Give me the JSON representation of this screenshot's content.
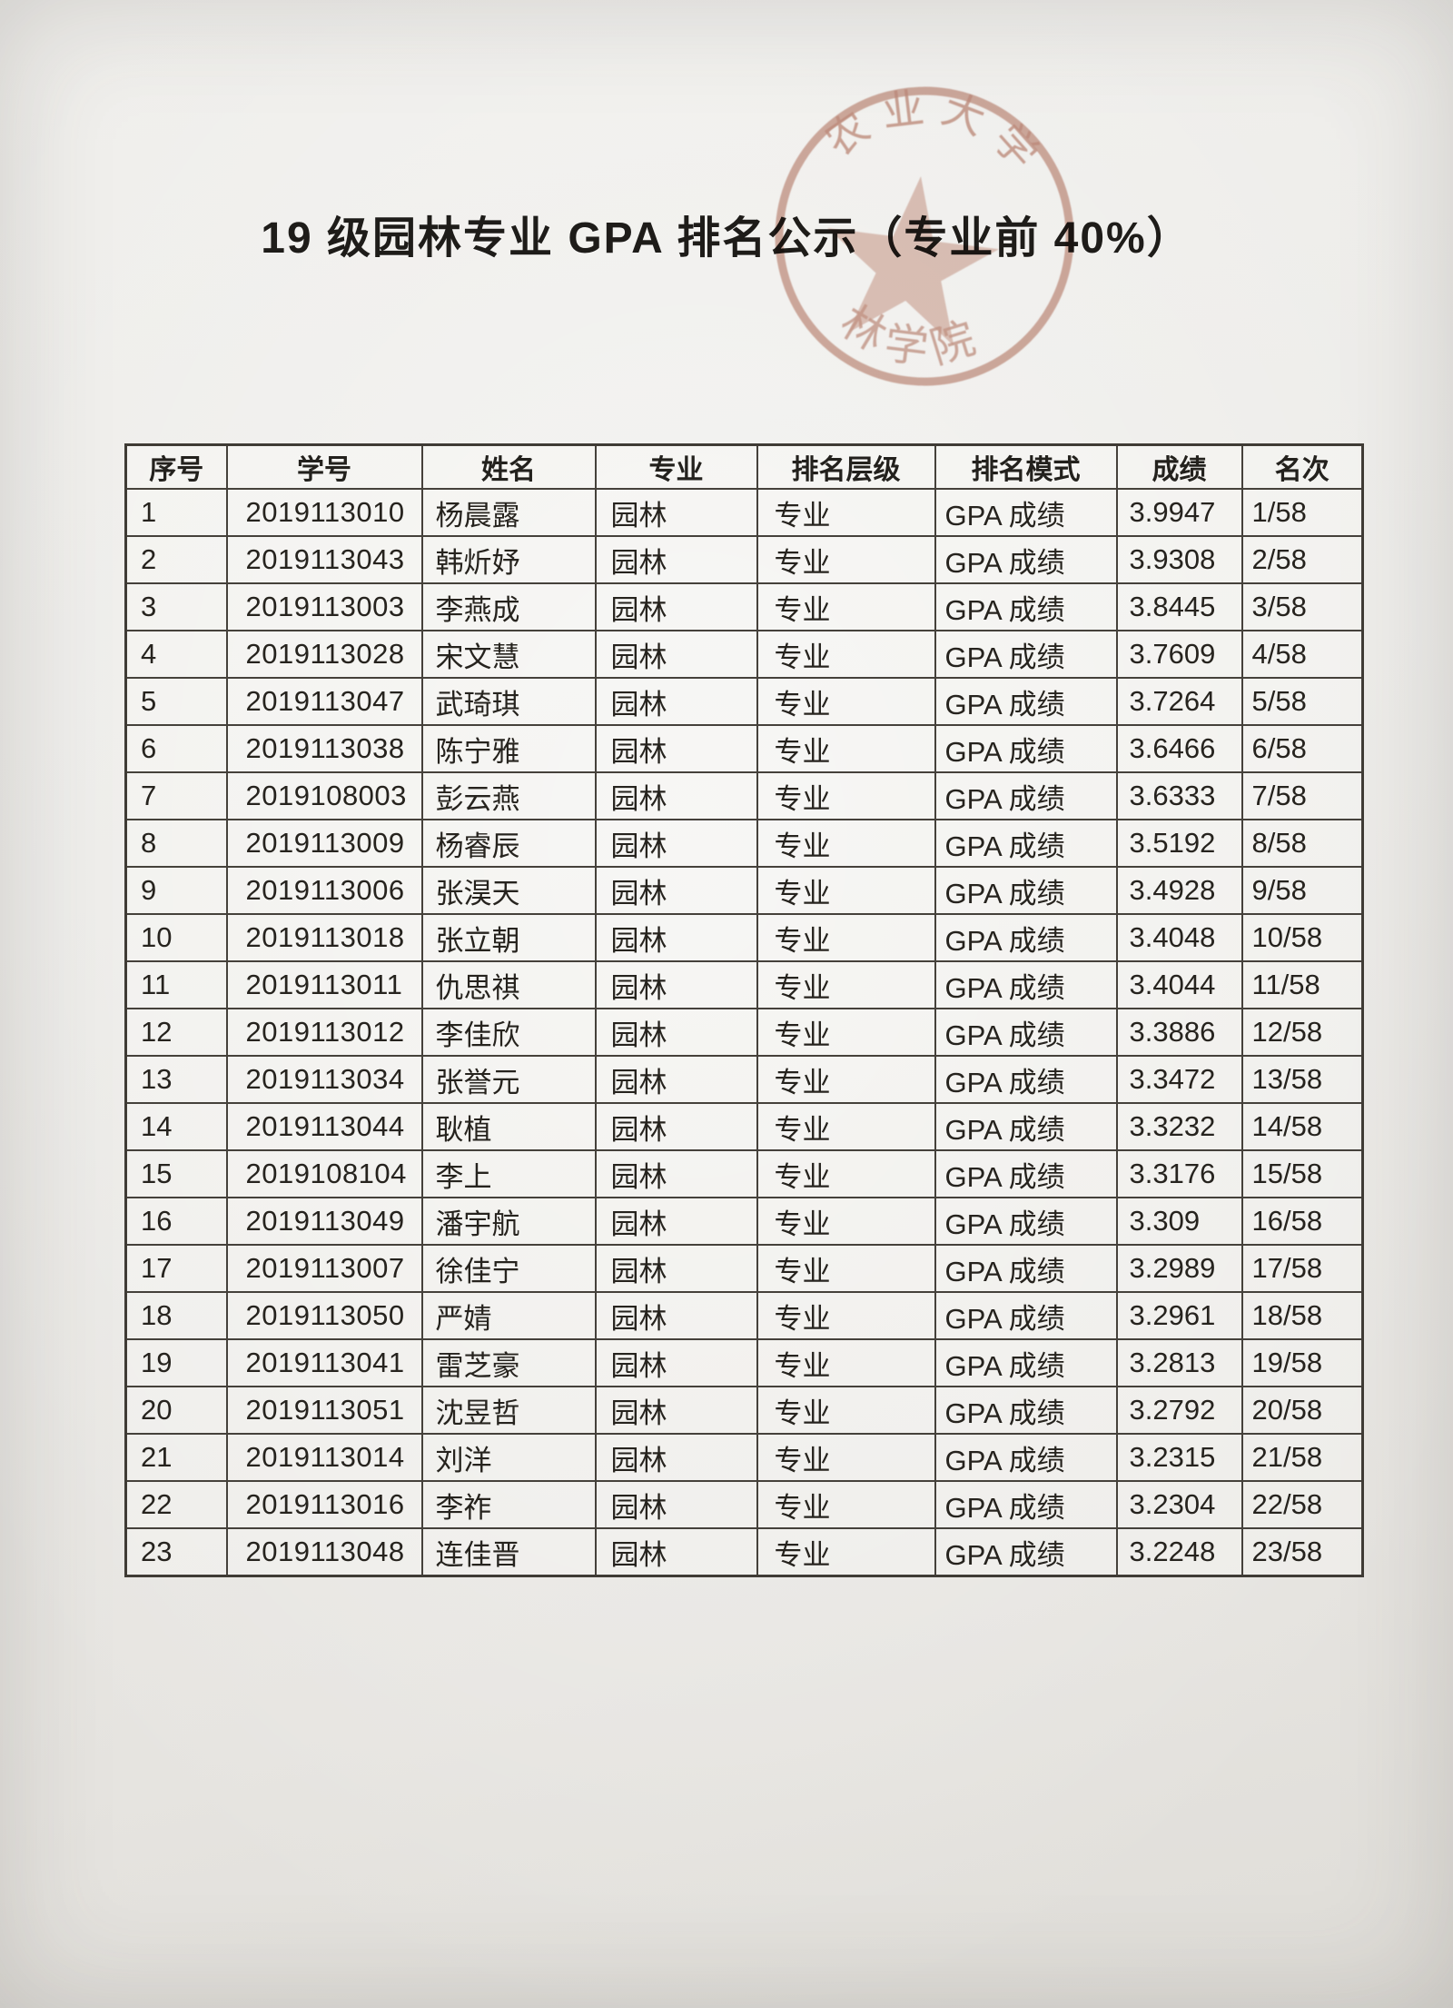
{
  "page": {
    "title": "19 级园林专业 GPA 排名公示（专业前 40%）"
  },
  "stamp": {
    "top_text": "农业大学",
    "bottom_text": "林学院",
    "center_symbol": "five-pointed-star",
    "ink_color": "#c08573"
  },
  "table": {
    "columns": [
      "序号",
      "学号",
      "姓名",
      "专业",
      "排名层级",
      "排名模式",
      "成绩",
      "名次"
    ],
    "rows": [
      {
        "index": "1",
        "student_id": "2019113010",
        "name": "杨晨露",
        "major": "园林",
        "level": "专业",
        "mode": "GPA 成绩",
        "score": "3.9947",
        "rank": "1/58"
      },
      {
        "index": "2",
        "student_id": "2019113043",
        "name": "韩炘妤",
        "major": "园林",
        "level": "专业",
        "mode": "GPA 成绩",
        "score": "3.9308",
        "rank": "2/58"
      },
      {
        "index": "3",
        "student_id": "2019113003",
        "name": "李燕成",
        "major": "园林",
        "level": "专业",
        "mode": "GPA 成绩",
        "score": "3.8445",
        "rank": "3/58"
      },
      {
        "index": "4",
        "student_id": "2019113028",
        "name": "宋文慧",
        "major": "园林",
        "level": "专业",
        "mode": "GPA 成绩",
        "score": "3.7609",
        "rank": "4/58"
      },
      {
        "index": "5",
        "student_id": "2019113047",
        "name": "武琦琪",
        "major": "园林",
        "level": "专业",
        "mode": "GPA 成绩",
        "score": "3.7264",
        "rank": "5/58"
      },
      {
        "index": "6",
        "student_id": "2019113038",
        "name": "陈宁雅",
        "major": "园林",
        "level": "专业",
        "mode": "GPA 成绩",
        "score": "3.6466",
        "rank": "6/58"
      },
      {
        "index": "7",
        "student_id": "2019108003",
        "name": "彭云燕",
        "major": "园林",
        "level": "专业",
        "mode": "GPA 成绩",
        "score": "3.6333",
        "rank": "7/58"
      },
      {
        "index": "8",
        "student_id": "2019113009",
        "name": "杨睿辰",
        "major": "园林",
        "level": "专业",
        "mode": "GPA 成绩",
        "score": "3.5192",
        "rank": "8/58"
      },
      {
        "index": "9",
        "student_id": "2019113006",
        "name": "张淏天",
        "major": "园林",
        "level": "专业",
        "mode": "GPA 成绩",
        "score": "3.4928",
        "rank": "9/58"
      },
      {
        "index": "10",
        "student_id": "2019113018",
        "name": "张立朝",
        "major": "园林",
        "level": "专业",
        "mode": "GPA 成绩",
        "score": "3.4048",
        "rank": "10/58"
      },
      {
        "index": "11",
        "student_id": "2019113011",
        "name": "仇思祺",
        "major": "园林",
        "level": "专业",
        "mode": "GPA 成绩",
        "score": "3.4044",
        "rank": "11/58"
      },
      {
        "index": "12",
        "student_id": "2019113012",
        "name": "李佳欣",
        "major": "园林",
        "level": "专业",
        "mode": "GPA 成绩",
        "score": "3.3886",
        "rank": "12/58"
      },
      {
        "index": "13",
        "student_id": "2019113034",
        "name": "张誉元",
        "major": "园林",
        "level": "专业",
        "mode": "GPA 成绩",
        "score": "3.3472",
        "rank": "13/58"
      },
      {
        "index": "14",
        "student_id": "2019113044",
        "name": "耿植",
        "major": "园林",
        "level": "专业",
        "mode": "GPA 成绩",
        "score": "3.3232",
        "rank": "14/58"
      },
      {
        "index": "15",
        "student_id": "2019108104",
        "name": "李上",
        "major": "园林",
        "level": "专业",
        "mode": "GPA 成绩",
        "score": "3.3176",
        "rank": "15/58"
      },
      {
        "index": "16",
        "student_id": "2019113049",
        "name": "潘宇航",
        "major": "园林",
        "level": "专业",
        "mode": "GPA 成绩",
        "score": "3.309",
        "rank": "16/58"
      },
      {
        "index": "17",
        "student_id": "2019113007",
        "name": "徐佳宁",
        "major": "园林",
        "level": "专业",
        "mode": "GPA 成绩",
        "score": "3.2989",
        "rank": "17/58"
      },
      {
        "index": "18",
        "student_id": "2019113050",
        "name": "严婧",
        "major": "园林",
        "level": "专业",
        "mode": "GPA 成绩",
        "score": "3.2961",
        "rank": "18/58"
      },
      {
        "index": "19",
        "student_id": "2019113041",
        "name": "雷芝豪",
        "major": "园林",
        "level": "专业",
        "mode": "GPA 成绩",
        "score": "3.2813",
        "rank": "19/58"
      },
      {
        "index": "20",
        "student_id": "2019113051",
        "name": "沈昱哲",
        "major": "园林",
        "level": "专业",
        "mode": "GPA 成绩",
        "score": "3.2792",
        "rank": "20/58"
      },
      {
        "index": "21",
        "student_id": "2019113014",
        "name": "刘洋",
        "major": "园林",
        "level": "专业",
        "mode": "GPA 成绩",
        "score": "3.2315",
        "rank": "21/58"
      },
      {
        "index": "22",
        "student_id": "2019113016",
        "name": "李祚",
        "major": "园林",
        "level": "专业",
        "mode": "GPA 成绩",
        "score": "3.2304",
        "rank": "22/58"
      },
      {
        "index": "23",
        "student_id": "2019113048",
        "name": "连佳晋",
        "major": "园林",
        "level": "专业",
        "mode": "GPA 成绩",
        "score": "3.2248",
        "rank": "23/58"
      }
    ]
  }
}
